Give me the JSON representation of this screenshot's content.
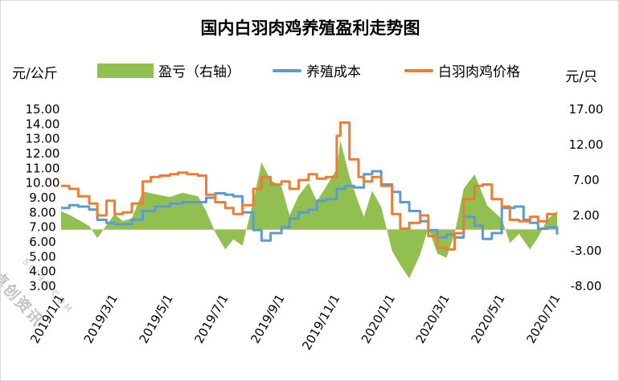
{
  "chart_data": {
    "type": "line",
    "title": "国内白羽肉鸡养殖盈利走势图",
    "left_unit": "元/公斤",
    "right_unit": "元/只",
    "left_axis": {
      "min": 3,
      "max": 15,
      "step": 1,
      "ticks": [
        "15.00",
        "14.00",
        "13.00",
        "12.00",
        "11.00",
        "10.00",
        "9.00",
        "8.00",
        "7.00",
        "6.00",
        "5.00",
        "4.00",
        "3.00"
      ]
    },
    "right_axis": {
      "min": -8,
      "max": 17,
      "baseline": 0,
      "ticks": [
        "17.00",
        "12.00",
        "7.00",
        "2.00",
        "-3.00",
        "-8.00"
      ]
    },
    "x_ticks": [
      "2019/1/1",
      "2019/3/1",
      "2019/5/1",
      "2019/7/1",
      "2019/9/1",
      "2019/11/1",
      "2020/1/1",
      "2020/3/1",
      "2020/5/1",
      "2020/7/1"
    ],
    "x_range": [
      "2019/1/1",
      "2020/7/1"
    ],
    "colors": {
      "profit": "#92c050",
      "cost": "#5b9bd5",
      "price": "#ed7d31"
    },
    "series": [
      {
        "name": "盈亏（右轴）",
        "axis": "right",
        "kind": "area",
        "points": [
          [
            "2019-01-01",
            2.6
          ],
          [
            "2019-01-10",
            2.1
          ],
          [
            "2019-01-20",
            1.4
          ],
          [
            "2019-02-01",
            0.5
          ],
          [
            "2019-02-10",
            -1.2
          ],
          [
            "2019-02-20",
            0.6
          ],
          [
            "2019-03-01",
            2.2
          ],
          [
            "2019-03-10",
            1.2
          ],
          [
            "2019-03-20",
            1.6
          ],
          [
            "2019-04-01",
            5.4
          ],
          [
            "2019-04-15",
            5.0
          ],
          [
            "2019-05-01",
            4.6
          ],
          [
            "2019-05-15",
            5.2
          ],
          [
            "2019-06-01",
            4.7
          ],
          [
            "2019-06-10",
            2.6
          ],
          [
            "2019-06-20",
            -0.4
          ],
          [
            "2019-07-01",
            -2.8
          ],
          [
            "2019-07-10",
            -1.4
          ],
          [
            "2019-07-20",
            -2.3
          ],
          [
            "2019-08-01",
            4.0
          ],
          [
            "2019-08-10",
            9.5
          ],
          [
            "2019-08-20",
            7.0
          ],
          [
            "2019-09-01",
            6.1
          ],
          [
            "2019-09-10",
            2.0
          ],
          [
            "2019-09-20",
            4.8
          ],
          [
            "2019-10-01",
            6.6
          ],
          [
            "2019-10-10",
            4.0
          ],
          [
            "2019-10-20",
            6.0
          ],
          [
            "2019-11-01",
            8.6
          ],
          [
            "2019-11-05",
            12.6
          ],
          [
            "2019-11-15",
            7.5
          ],
          [
            "2019-11-25",
            3.8
          ],
          [
            "2019-12-01",
            1.8
          ],
          [
            "2019-12-10",
            5.5
          ],
          [
            "2019-12-20",
            3.2
          ],
          [
            "2020-01-01",
            -3.0
          ],
          [
            "2020-01-10",
            -5.0
          ],
          [
            "2020-01-20",
            -6.9
          ],
          [
            "2020-02-01",
            -3.5
          ],
          [
            "2020-02-10",
            0.2
          ],
          [
            "2020-02-20",
            -3.4
          ],
          [
            "2020-03-01",
            -4.0
          ],
          [
            "2020-03-10",
            -0.6
          ],
          [
            "2020-03-20",
            5.8
          ],
          [
            "2020-04-01",
            7.8
          ],
          [
            "2020-04-15",
            3.4
          ],
          [
            "2020-05-01",
            1.5
          ],
          [
            "2020-05-10",
            -1.9
          ],
          [
            "2020-05-20",
            -0.6
          ],
          [
            "2020-06-01",
            -2.8
          ],
          [
            "2020-06-10",
            -1.1
          ],
          [
            "2020-06-20",
            1.4
          ],
          [
            "2020-07-01",
            2.6
          ]
        ]
      },
      {
        "name": "养殖成本",
        "axis": "left",
        "kind": "line",
        "points": [
          [
            "2019-01-01",
            8.3
          ],
          [
            "2019-01-10",
            8.5
          ],
          [
            "2019-01-20",
            8.4
          ],
          [
            "2019-02-01",
            8.2
          ],
          [
            "2019-02-10",
            7.5
          ],
          [
            "2019-02-20",
            7.3
          ],
          [
            "2019-03-01",
            7.2
          ],
          [
            "2019-03-10",
            7.2
          ],
          [
            "2019-03-20",
            7.5
          ],
          [
            "2019-04-01",
            8.1
          ],
          [
            "2019-04-15",
            8.4
          ],
          [
            "2019-05-01",
            8.6
          ],
          [
            "2019-05-15",
            8.7
          ],
          [
            "2019-06-01",
            8.7
          ],
          [
            "2019-06-10",
            9.0
          ],
          [
            "2019-06-20",
            9.3
          ],
          [
            "2019-07-01",
            9.2
          ],
          [
            "2019-07-10",
            9.1
          ],
          [
            "2019-07-20",
            8.0
          ],
          [
            "2019-08-01",
            6.8
          ],
          [
            "2019-08-10",
            6.1
          ],
          [
            "2019-08-20",
            6.6
          ],
          [
            "2019-09-01",
            7.0
          ],
          [
            "2019-09-10",
            7.6
          ],
          [
            "2019-09-20",
            8.0
          ],
          [
            "2019-10-01",
            8.2
          ],
          [
            "2019-10-10",
            8.8
          ],
          [
            "2019-10-20",
            8.9
          ],
          [
            "2019-11-01",
            9.6
          ],
          [
            "2019-11-10",
            9.8
          ],
          [
            "2019-11-20",
            9.7
          ],
          [
            "2019-12-01",
            10.6
          ],
          [
            "2019-12-10",
            10.8
          ],
          [
            "2019-12-20",
            9.9
          ],
          [
            "2020-01-01",
            9.4
          ],
          [
            "2020-01-10",
            8.7
          ],
          [
            "2020-01-20",
            8.1
          ],
          [
            "2020-02-01",
            7.4
          ],
          [
            "2020-02-10",
            6.8
          ],
          [
            "2020-02-20",
            6.3
          ],
          [
            "2020-03-01",
            6.5
          ],
          [
            "2020-03-10",
            6.3
          ],
          [
            "2020-03-20",
            7.7
          ],
          [
            "2020-04-01",
            7.1
          ],
          [
            "2020-04-10",
            6.2
          ],
          [
            "2020-04-20",
            6.6
          ],
          [
            "2020-05-01",
            8.3
          ],
          [
            "2020-05-15",
            8.4
          ],
          [
            "2020-05-25",
            7.5
          ],
          [
            "2020-06-01",
            7.3
          ],
          [
            "2020-06-10",
            6.9
          ],
          [
            "2020-06-20",
            7.0
          ],
          [
            "2020-07-01",
            6.5
          ]
        ]
      },
      {
        "name": "白羽肉鸡价格",
        "axis": "left",
        "kind": "line",
        "points": [
          [
            "2019-01-01",
            9.8
          ],
          [
            "2019-01-10",
            9.6
          ],
          [
            "2019-01-20",
            9.1
          ],
          [
            "2019-02-01",
            8.6
          ],
          [
            "2019-02-10",
            7.8
          ],
          [
            "2019-02-20",
            8.8
          ],
          [
            "2019-03-01",
            7.9
          ],
          [
            "2019-03-10",
            8.0
          ],
          [
            "2019-03-20",
            8.6
          ],
          [
            "2019-04-01",
            10.1
          ],
          [
            "2019-04-10",
            10.4
          ],
          [
            "2019-04-20",
            10.5
          ],
          [
            "2019-05-01",
            10.6
          ],
          [
            "2019-05-10",
            10.7
          ],
          [
            "2019-05-20",
            10.6
          ],
          [
            "2019-06-01",
            10.5
          ],
          [
            "2019-06-10",
            9.2
          ],
          [
            "2019-06-20",
            8.7
          ],
          [
            "2019-07-01",
            8.3
          ],
          [
            "2019-07-10",
            7.9
          ],
          [
            "2019-07-20",
            8.5
          ],
          [
            "2019-08-01",
            9.6
          ],
          [
            "2019-08-10",
            10.4
          ],
          [
            "2019-08-20",
            9.9
          ],
          [
            "2019-09-01",
            10.1
          ],
          [
            "2019-09-10",
            9.6
          ],
          [
            "2019-09-20",
            10.2
          ],
          [
            "2019-10-01",
            10.6
          ],
          [
            "2019-10-10",
            10.3
          ],
          [
            "2019-10-20",
            10.4
          ],
          [
            "2019-11-01",
            13.2
          ],
          [
            "2019-11-05",
            14.1
          ],
          [
            "2019-11-15",
            11.6
          ],
          [
            "2019-11-25",
            10.4
          ],
          [
            "2019-12-01",
            10.1
          ],
          [
            "2019-12-10",
            10.4
          ],
          [
            "2019-12-20",
            9.8
          ],
          [
            "2020-01-01",
            7.9
          ],
          [
            "2020-01-10",
            6.9
          ],
          [
            "2020-01-20",
            7.3
          ],
          [
            "2020-02-01",
            7.8
          ],
          [
            "2020-02-10",
            6.4
          ],
          [
            "2020-02-20",
            5.6
          ],
          [
            "2020-03-01",
            5.5
          ],
          [
            "2020-03-10",
            6.6
          ],
          [
            "2020-03-20",
            8.9
          ],
          [
            "2020-04-01",
            9.8
          ],
          [
            "2020-04-10",
            9.9
          ],
          [
            "2020-04-20",
            8.9
          ],
          [
            "2020-05-01",
            8.4
          ],
          [
            "2020-05-10",
            7.5
          ],
          [
            "2020-05-20",
            7.4
          ],
          [
            "2020-06-01",
            7.7
          ],
          [
            "2020-06-10",
            7.4
          ],
          [
            "2020-06-20",
            7.9
          ],
          [
            "2020-07-01",
            7.9
          ]
        ]
      }
    ],
    "watermark": "卓创资讯",
    "watermark_sub": "SCI99.COM"
  }
}
